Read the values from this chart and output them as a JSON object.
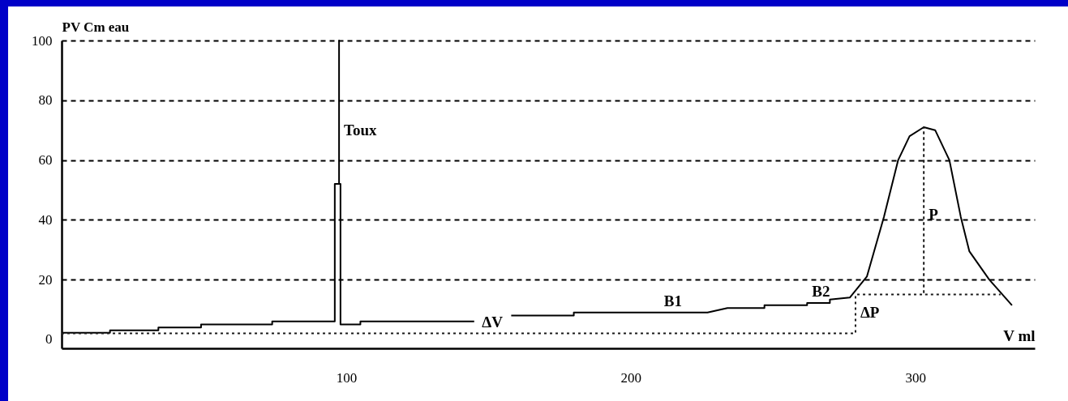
{
  "chart_data": {
    "type": "line",
    "ylabel": "PV  Cm eau",
    "xlabel": "V   ml",
    "xlim": [
      0,
      342
    ],
    "ylim": [
      -3,
      100
    ],
    "xticks": [
      100,
      200,
      300
    ],
    "yticks": [
      0,
      20,
      40,
      60,
      80,
      100
    ],
    "grid": "y",
    "line_style": "solid",
    "marker": "none",
    "series": [
      {
        "color": "#000000",
        "x": [
          0,
          17,
          17,
          34,
          34,
          49,
          49,
          74,
          74,
          96,
          96,
          97.5,
          97.5,
          97.5,
          98,
          98,
          105,
          105,
          145,
          150,
          158,
          180,
          180,
          227,
          234,
          247,
          247,
          262,
          262,
          270,
          270,
          277,
          283,
          289,
          294,
          298,
          303,
          307,
          312,
          316,
          319,
          326,
          334
        ],
        "values": [
          2.2,
          2.2,
          3,
          3,
          4,
          4,
          5,
          5,
          6,
          6,
          52,
          52,
          100,
          52,
          52,
          5,
          5,
          6,
          6,
          null,
          8,
          8,
          9,
          9,
          10.5,
          10.5,
          11.4,
          11.4,
          12.2,
          12.2,
          13.3,
          14,
          21,
          41,
          60,
          68,
          71,
          70,
          60,
          41,
          29.5,
          20,
          11.4
        ]
      },
      {
        "color": "#1a1a1a",
        "line_style": "dotted",
        "x": [
          0,
          279,
          279,
          303,
          303,
          303,
          330
        ],
        "values": [
          2,
          2,
          15,
          15,
          71,
          15,
          15
        ]
      }
    ],
    "annotations": [
      {
        "text": "Toux",
        "x": 97.5,
        "y": 66
      },
      {
        "text": "ΔV",
        "x": 146,
        "y": 2
      },
      {
        "text": "B1",
        "x": 210,
        "y": 9
      },
      {
        "text": "B2",
        "x": 262,
        "y": 12.2
      },
      {
        "text": "ΔP",
        "x": 279,
        "y": 5
      },
      {
        "text": "P",
        "x": 303,
        "y": 38
      }
    ]
  }
}
